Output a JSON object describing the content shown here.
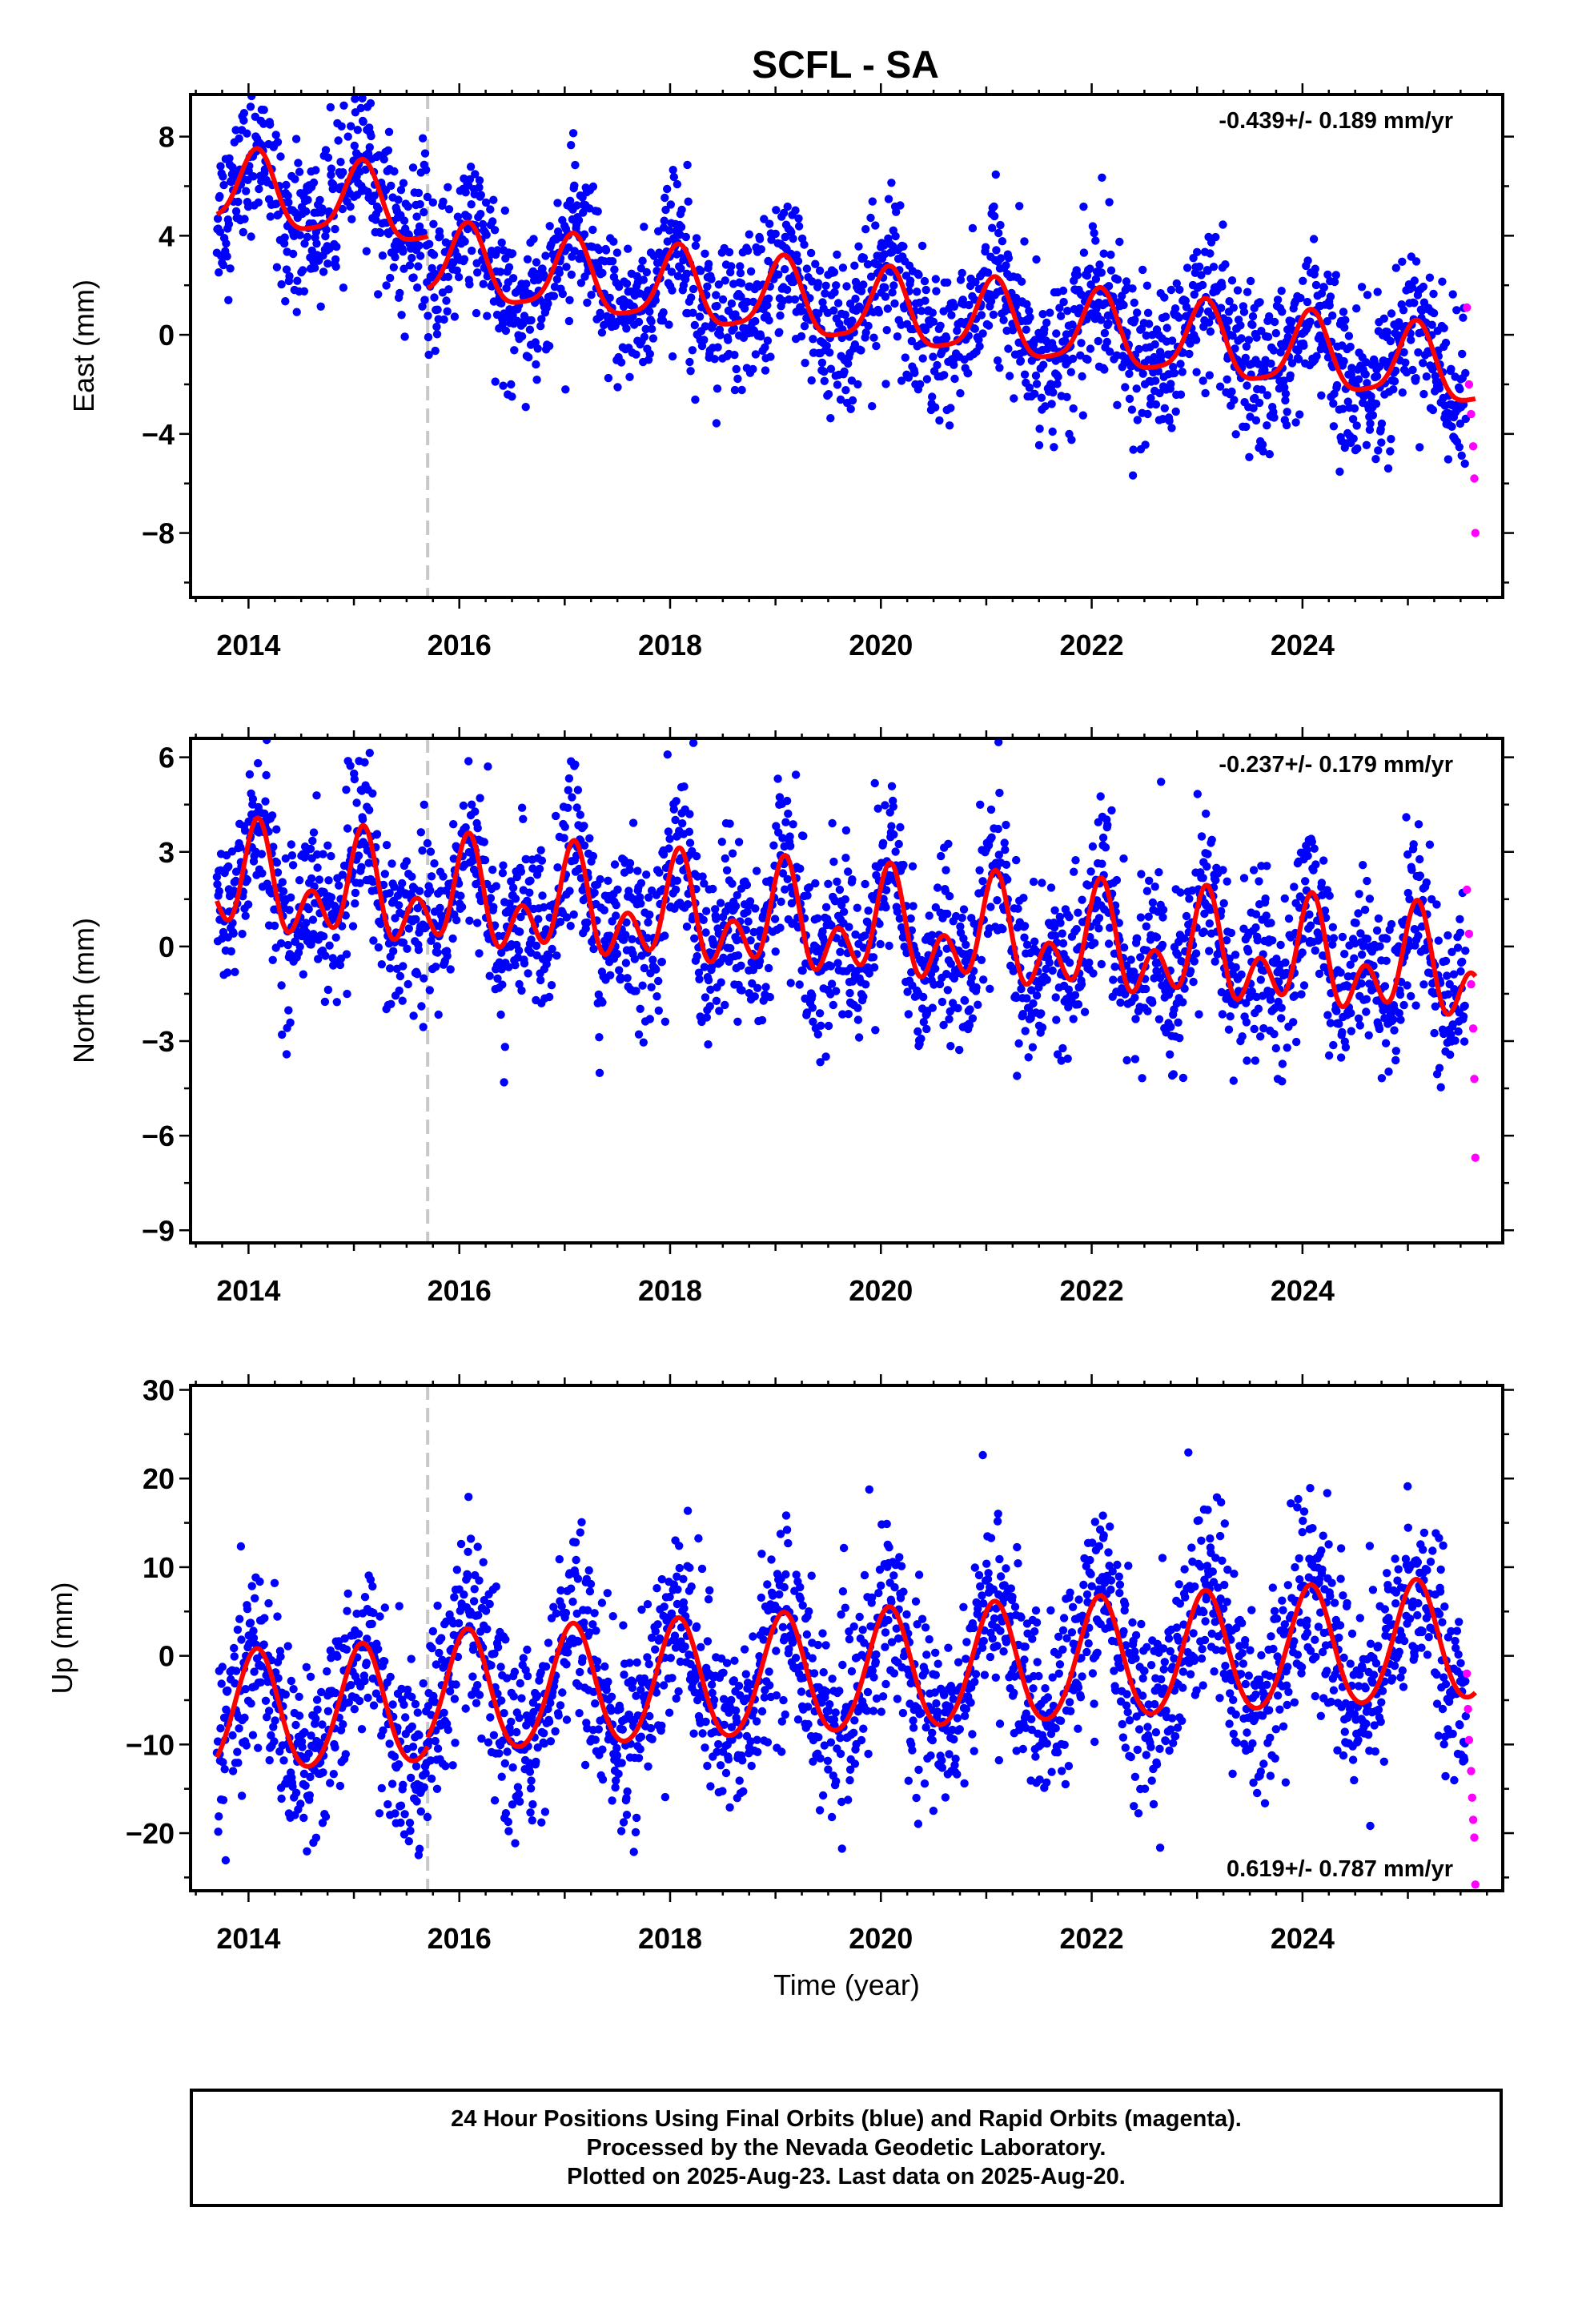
{
  "title": "SCFL - SA",
  "footer": {
    "line1": "24 Hour Positions Using Final Orbits (blue) and Rapid Orbits (magenta).",
    "line2": "Processed by the Nevada Geodetic Laboratory.",
    "line3": "Plotted on 2025-Aug-23. Last data on 2025-Aug-20."
  },
  "colors": {
    "final_orbits": "#0000ff",
    "rapid_orbits": "#ff00ff",
    "model_fit": "#ff0000",
    "antenna_change_marker": "#c8c8c8"
  },
  "chart_data": [
    {
      "type": "scatter",
      "panel": "east",
      "ylabel": "East (mm)",
      "xlabel": "",
      "xlim": [
        2013.45,
        2025.9
      ],
      "ylim": [
        -10.6,
        9.7
      ],
      "xticks": [
        2014,
        2016,
        2018,
        2020,
        2022,
        2024
      ],
      "yticks": [
        8,
        4,
        0,
        -4,
        -8
      ],
      "ytick_labels": [
        "8",
        "4",
        "0",
        "−4",
        "−8"
      ],
      "rate": "-0.439+/- 0.189 mm/yr",
      "rate_position": "top-right",
      "vertical_marker_x": 2015.7,
      "data_start": 2013.7,
      "final_end": 2025.55,
      "rapid_end": 2025.64,
      "series": [
        {
          "name": "Final Orbits",
          "color": "#0000ff",
          "scatter_sd": 1.5
        },
        {
          "name": "Rapid Orbits",
          "color": "#ff00ff",
          "x": [
            2025.56,
            2025.58,
            2025.6,
            2025.62,
            2025.63,
            2025.64
          ],
          "y": [
            1.1,
            -2.0,
            -3.2,
            -4.5,
            -5.8,
            -8.0
          ]
        }
      ],
      "model": {
        "step_x": 2015.7,
        "segments": [
          {
            "from": 2013.7,
            "to": 2015.7,
            "offset": 3.3,
            "trend": -0.439,
            "annual": 1.5,
            "semiannual": 0.35
          },
          {
            "from": 2015.7,
            "to": 2025.64,
            "offset": 1.2,
            "trend": -0.439,
            "annual": 1.5,
            "semiannual": 0.35
          }
        ]
      }
    },
    {
      "type": "scatter",
      "panel": "north",
      "ylabel": "North (mm)",
      "xlabel": "",
      "xlim": [
        2013.45,
        2025.9
      ],
      "ylim": [
        -9.4,
        6.6
      ],
      "xticks": [
        2014,
        2016,
        2018,
        2020,
        2022,
        2024
      ],
      "yticks": [
        6,
        3,
        0,
        -3,
        -6,
        -9
      ],
      "ytick_labels": [
        "6",
        "3",
        "0",
        "−3",
        "−6",
        "−9"
      ],
      "rate": "-0.237+/- 0.179 mm/yr",
      "rate_position": "top-right",
      "vertical_marker_x": 2015.7,
      "data_start": 2013.7,
      "final_end": 2025.55,
      "rapid_end": 2025.64,
      "series": [
        {
          "name": "Final Orbits",
          "color": "#0000ff",
          "scatter_sd": 1.3
        },
        {
          "name": "Rapid Orbits",
          "color": "#ff00ff",
          "x": [
            2025.56,
            2025.58,
            2025.6,
            2025.62,
            2025.63,
            2025.64
          ],
          "y": [
            1.8,
            0.4,
            -1.2,
            -2.6,
            -4.2,
            -6.7
          ]
        }
      ],
      "model": {
        "step_x": 2015.7,
        "segments": [
          {
            "from": 2013.7,
            "to": 2015.7,
            "offset": 0.6,
            "trend": -0.237,
            "annual": 1.1,
            "semiannual": 1.1
          },
          {
            "from": 2015.7,
            "to": 2025.64,
            "offset": 0.6,
            "trend": -0.237,
            "annual": 1.1,
            "semiannual": 1.1
          }
        ]
      }
    },
    {
      "type": "scatter",
      "panel": "up",
      "ylabel": "Up (mm)",
      "xlabel": "Time (year)",
      "xlim": [
        2013.45,
        2025.9
      ],
      "ylim": [
        -26.5,
        30.5
      ],
      "xticks": [
        2014,
        2016,
        2018,
        2020,
        2022,
        2024
      ],
      "yticks": [
        30,
        20,
        10,
        0,
        -10,
        -20
      ],
      "ytick_labels": [
        "30",
        "20",
        "10",
        "0",
        "−10",
        "−20"
      ],
      "rate": "0.619+/- 0.787 mm/yr",
      "rate_position": "bottom-right",
      "vertical_marker_x": 2015.7,
      "data_start": 2013.7,
      "final_end": 2025.55,
      "rapid_end": 2025.64,
      "series": [
        {
          "name": "Final Orbits",
          "color": "#0000ff",
          "scatter_sd": 5.2
        },
        {
          "name": "Rapid Orbits",
          "color": "#ff00ff",
          "x": [
            2025.56,
            2025.57,
            2025.58,
            2025.6,
            2025.61,
            2025.62,
            2025.63,
            2025.64
          ],
          "y": [
            -2.0,
            -6.0,
            -9.5,
            -13.0,
            -16.0,
            -18.5,
            -20.5,
            -25.8
          ]
        }
      ],
      "model": {
        "step_x": 2015.7,
        "segments": [
          {
            "from": 2013.7,
            "to": 2015.7,
            "offset": -3.2,
            "trend": 0.619,
            "annual": 6.8,
            "semiannual": 0.6
          },
          {
            "from": 2015.7,
            "to": 2025.64,
            "offset": -2.2,
            "trend": 0.619,
            "annual": 6.8,
            "semiannual": 0.6
          }
        ]
      }
    }
  ]
}
